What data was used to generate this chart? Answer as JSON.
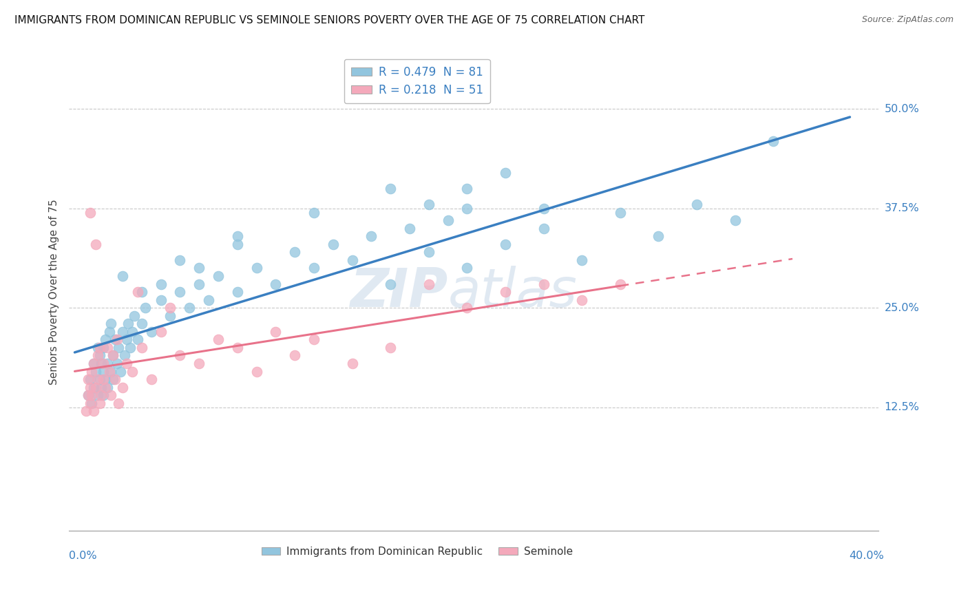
{
  "title": "IMMIGRANTS FROM DOMINICAN REPUBLIC VS SEMINOLE SENIORS POVERTY OVER THE AGE OF 75 CORRELATION CHART",
  "source": "Source: ZipAtlas.com",
  "ylabel": "Seniors Poverty Over the Age of 75",
  "ytick_vals": [
    12.5,
    25.0,
    37.5,
    50.0
  ],
  "label1": "Immigrants from Dominican Republic",
  "label2": "Seminole",
  "color_blue": "#92c5de",
  "color_pink": "#f4a9bb",
  "line_blue": "#3a7fc1",
  "line_pink": "#e8728a",
  "watermark_color": "#d0dce8",
  "blue_x": [
    0.2,
    0.3,
    0.4,
    0.5,
    0.5,
    0.6,
    0.7,
    0.7,
    0.8,
    0.8,
    0.9,
    0.9,
    1.0,
    1.0,
    1.0,
    1.1,
    1.1,
    1.2,
    1.2,
    1.3,
    1.4,
    1.4,
    1.5,
    1.5,
    1.6,
    1.7,
    1.8,
    1.9,
    2.0,
    2.1,
    2.2,
    2.3,
    2.4,
    2.5,
    2.6,
    2.8,
    3.0,
    3.2,
    3.5,
    4.0,
    4.5,
    5.0,
    5.5,
    6.0,
    6.5,
    7.0,
    8.0,
    9.0,
    10.0,
    11.0,
    12.0,
    13.0,
    14.0,
    15.0,
    16.0,
    17.0,
    18.0,
    19.0,
    20.0,
    22.0,
    24.0,
    26.0,
    28.0,
    30.0,
    32.0,
    34.0,
    36.0,
    18.0,
    20.0,
    22.0,
    5.0,
    8.0,
    12.0,
    16.0,
    20.0,
    24.0,
    2.0,
    3.0,
    4.0,
    6.0,
    8.0
  ],
  "blue_y": [
    14.0,
    16.0,
    13.0,
    18.0,
    15.0,
    17.0,
    14.0,
    20.0,
    16.0,
    19.0,
    15.0,
    18.0,
    14.0,
    20.0,
    17.0,
    16.0,
    21.0,
    18.0,
    15.0,
    22.0,
    17.0,
    23.0,
    19.0,
    16.0,
    21.0,
    18.0,
    20.0,
    17.0,
    22.0,
    19.0,
    21.0,
    23.0,
    20.0,
    22.0,
    24.0,
    21.0,
    23.0,
    25.0,
    22.0,
    26.0,
    24.0,
    27.0,
    25.0,
    28.0,
    26.0,
    29.0,
    27.0,
    30.0,
    28.0,
    32.0,
    30.0,
    33.0,
    31.0,
    34.0,
    28.0,
    35.0,
    32.0,
    36.0,
    30.0,
    33.0,
    35.0,
    31.0,
    37.0,
    34.0,
    38.0,
    36.0,
    46.0,
    38.0,
    40.0,
    42.0,
    31.0,
    34.0,
    37.0,
    40.0,
    37.5,
    37.5,
    29.0,
    27.0,
    28.0,
    30.0,
    33.0
  ],
  "pink_x": [
    0.1,
    0.2,
    0.2,
    0.3,
    0.3,
    0.4,
    0.4,
    0.5,
    0.5,
    0.6,
    0.7,
    0.7,
    0.8,
    0.8,
    0.9,
    1.0,
    1.0,
    1.1,
    1.2,
    1.3,
    1.4,
    1.5,
    1.6,
    1.7,
    1.8,
    2.0,
    2.2,
    2.5,
    3.0,
    3.5,
    4.0,
    5.0,
    6.0,
    7.0,
    8.0,
    9.0,
    10.0,
    11.0,
    12.0,
    14.0,
    16.0,
    18.0,
    20.0,
    22.0,
    24.0,
    26.0,
    28.0,
    0.3,
    0.6,
    2.8,
    4.5
  ],
  "pink_y": [
    12.0,
    14.0,
    16.0,
    13.0,
    15.0,
    14.0,
    17.0,
    12.0,
    18.0,
    15.0,
    16.0,
    19.0,
    13.0,
    20.0,
    14.0,
    16.0,
    18.0,
    15.0,
    20.0,
    17.0,
    14.0,
    19.0,
    16.0,
    21.0,
    13.0,
    15.0,
    18.0,
    17.0,
    20.0,
    16.0,
    22.0,
    19.0,
    18.0,
    21.0,
    20.0,
    17.0,
    22.0,
    19.0,
    21.0,
    18.0,
    20.0,
    28.0,
    25.0,
    27.0,
    28.0,
    26.0,
    28.0,
    37.0,
    33.0,
    27.0,
    25.0
  ]
}
